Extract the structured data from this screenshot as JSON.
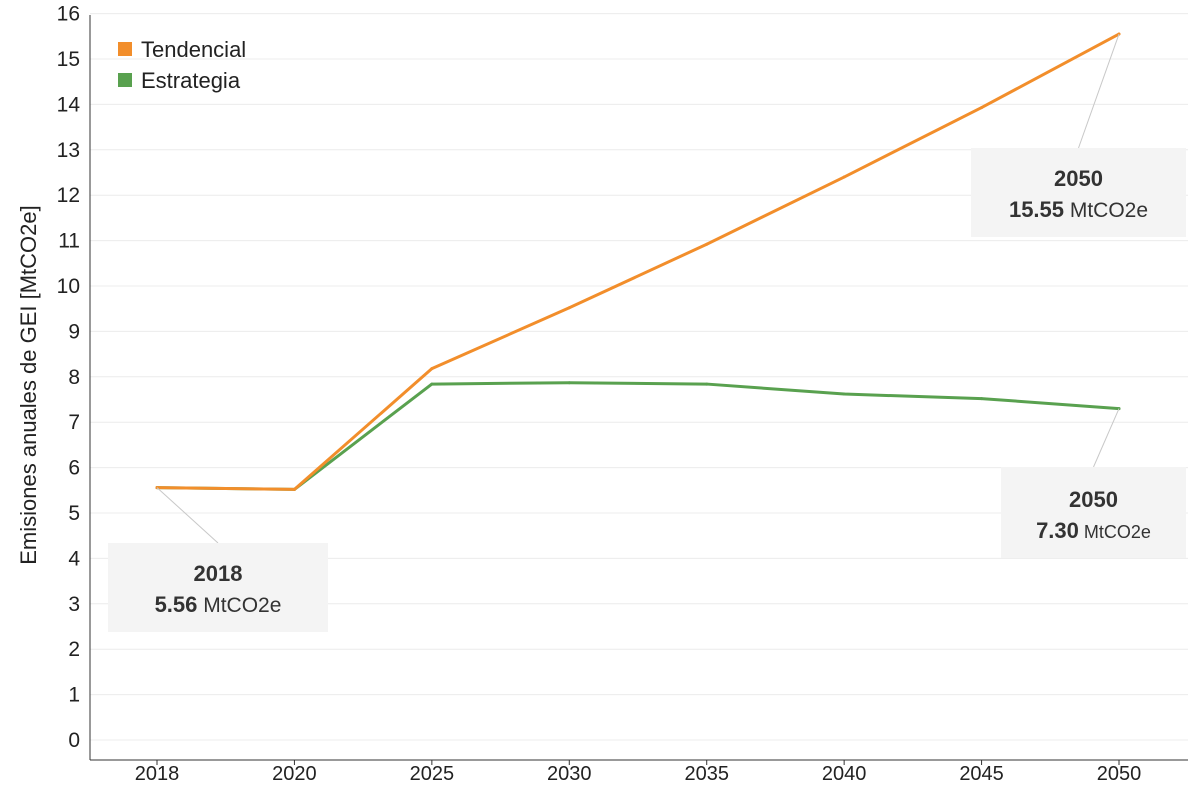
{
  "chart_data": {
    "type": "line",
    "title": "",
    "ylabel": "Emisiones anuales de GEI [MtCO2e]",
    "xlabel": "",
    "categories": [
      "2018",
      "2020",
      "2025",
      "2030",
      "2035",
      "2040",
      "2045",
      "2050"
    ],
    "ylim": [
      0,
      16
    ],
    "yticks": [
      "0",
      "1",
      "2",
      "3",
      "4",
      "5",
      "6",
      "7",
      "8",
      "9",
      "10",
      "11",
      "12",
      "13",
      "14",
      "15",
      "16"
    ],
    "grid": true,
    "legend_position": "top-left",
    "series": [
      {
        "name": "Tendencial",
        "color": "#F28E2B",
        "values": [
          5.56,
          5.52,
          8.18,
          9.52,
          10.92,
          12.4,
          13.93,
          15.55
        ]
      },
      {
        "name": "Estrategia",
        "color": "#59A14F",
        "values": [
          5.56,
          5.52,
          7.84,
          7.87,
          7.84,
          7.62,
          7.52,
          7.3
        ]
      }
    ],
    "annotations": [
      {
        "year": "2018",
        "value": "5.56",
        "unit": "MtCO2e",
        "category_index": 0,
        "series_index": 0
      },
      {
        "year": "2050",
        "value": "15.55",
        "unit": "MtCO2e",
        "category_index": 7,
        "series_index": 0
      },
      {
        "year": "2050",
        "value": "7.30",
        "unit": "MtCO2e",
        "category_index": 7,
        "series_index": 1
      }
    ]
  }
}
